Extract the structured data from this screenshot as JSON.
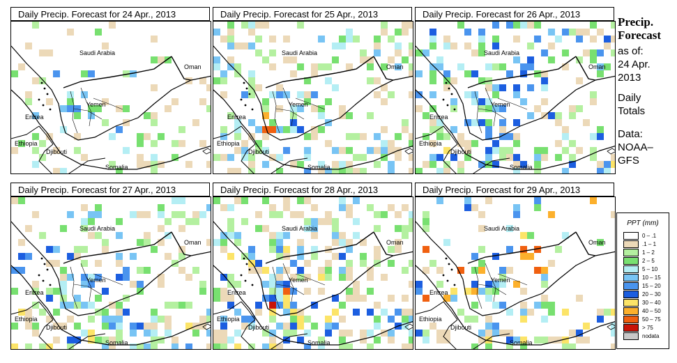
{
  "panels": [
    {
      "title": "Daily Precip. Forecast for  24 Apr., 2013"
    },
    {
      "title": "Daily Precip. Forecast for  25 Apr., 2013"
    },
    {
      "title": "Daily Precip. Forecast for  26 Apr., 2013"
    },
    {
      "title": "Daily Precip. Forecast for  27 Apr., 2013"
    },
    {
      "title": "Daily Precip. Forecast for  28 Apr., 2013"
    },
    {
      "title": "Daily Precip. Forecast for  29 Apr., 2013"
    }
  ],
  "map_labels": {
    "saudi": "Saudi Arabia",
    "oman": "Oman",
    "yemen": "Yemen",
    "eritrea": "Eritrea",
    "ethiopia": "Ethiopia",
    "djibouti": "Djibouti",
    "somalia": "Somalia"
  },
  "side": {
    "title1": "Precip.",
    "title2": "Forecast",
    "asof": "as of:",
    "date1": "24 Apr.",
    "date2": "2013",
    "daily1": "Daily",
    "daily2": "Totals",
    "data1": "Data:",
    "data2": "NOAA–",
    "data3": "GFS"
  },
  "legend": {
    "title": "PPT (mm)",
    "items": [
      {
        "label": "0 – .1",
        "color": "#ffffff"
      },
      {
        "label": ".1 – 1",
        "color": "#ecd9b8"
      },
      {
        "label": "1 – 2",
        "color": "#b4f0a0"
      },
      {
        "label": "2 – 5",
        "color": "#78e070"
      },
      {
        "label": "5 – 10",
        "color": "#b4eef4"
      },
      {
        "label": "10 – 15",
        "color": "#78c4f4"
      },
      {
        "label": "15 – 20",
        "color": "#4a94ee"
      },
      {
        "label": "20 – 30",
        "color": "#1c5ee0"
      },
      {
        "label": "30 – 40",
        "color": "#fce468"
      },
      {
        "label": "40 – 50",
        "color": "#fcb02c"
      },
      {
        "label": "50 – 75",
        "color": "#f06010"
      },
      {
        "label": "> 75",
        "color": "#c81408"
      },
      {
        "label": "nodata",
        "color": "#c8c8c8"
      }
    ]
  }
}
